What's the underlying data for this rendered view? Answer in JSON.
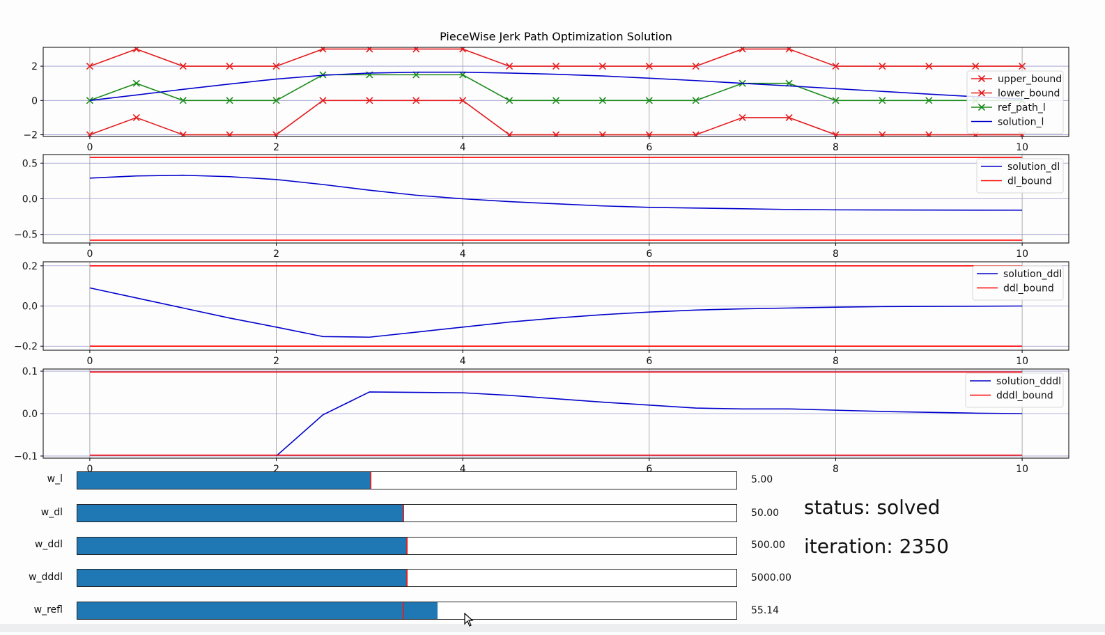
{
  "figure_title": "PieceWise Jerk Path Optimization Solution",
  "colors": {
    "bound": "#e41a1c",
    "bound_line": "#ff0000",
    "reference": "#1a8a1a",
    "solution": "#0000cc",
    "slider_fill": "#1f77b4",
    "slider_init": "#d62728"
  },
  "chart_data": [
    {
      "type": "line",
      "title": "PieceWise Jerk Path Optimization Solution",
      "xlim": [
        -0.5,
        10.5
      ],
      "ylim": [
        -2.1,
        3.1
      ],
      "xticks": [
        0,
        2,
        4,
        6,
        8,
        10
      ],
      "yticks": [
        -2,
        0,
        2
      ],
      "ytick_labels": [
        "−2",
        "0",
        "2"
      ],
      "grid": true,
      "legend": "right",
      "series": [
        {
          "name": "upper_bound",
          "color": "#e41a1c",
          "marker": "x",
          "x": [
            0,
            0.5,
            1,
            1.5,
            2,
            2.5,
            3,
            3.5,
            4,
            4.5,
            5,
            5.5,
            6,
            6.5,
            7,
            7.5,
            8,
            8.5,
            9,
            9.5,
            10
          ],
          "y": [
            2,
            3,
            2,
            2,
            2,
            3,
            3,
            3,
            3,
            2,
            2,
            2,
            2,
            2,
            3,
            3,
            2,
            2,
            2,
            2,
            2
          ]
        },
        {
          "name": "lower_bound",
          "color": "#e41a1c",
          "marker": "x",
          "x": [
            0,
            0.5,
            1,
            1.5,
            2,
            2.5,
            3,
            3.5,
            4,
            4.5,
            5,
            5.5,
            6,
            6.5,
            7,
            7.5,
            8,
            8.5,
            9,
            9.5,
            10
          ],
          "y": [
            -2,
            -1,
            -2,
            -2,
            -2,
            0,
            0,
            0,
            0,
            -2,
            -2,
            -2,
            -2,
            -2,
            -1,
            -1,
            -2,
            -2,
            -2,
            -2,
            -2
          ]
        },
        {
          "name": "ref_path_l",
          "color": "#1a8a1a",
          "marker": "x",
          "x": [
            0,
            0.5,
            1,
            1.5,
            2,
            2.5,
            3,
            3.5,
            4,
            4.5,
            5,
            5.5,
            6,
            6.5,
            7,
            7.5,
            8,
            8.5,
            9,
            9.5,
            10
          ],
          "y": [
            0,
            1,
            0,
            0,
            0,
            1.5,
            1.5,
            1.5,
            1.5,
            0,
            0,
            0,
            0,
            0,
            1,
            1,
            0,
            0,
            0,
            0,
            0
          ]
        },
        {
          "name": "solution_l",
          "color": "#0000cc",
          "marker": "",
          "x": [
            0,
            0.5,
            1,
            1.5,
            2,
            2.5,
            3,
            3.5,
            4,
            4.5,
            5,
            5.5,
            6,
            6.5,
            7,
            7.5,
            8,
            8.5,
            9,
            9.5,
            10
          ],
          "y": [
            0,
            0.32,
            0.65,
            0.96,
            1.25,
            1.47,
            1.6,
            1.65,
            1.65,
            1.6,
            1.53,
            1.43,
            1.3,
            1.16,
            1.0,
            0.85,
            0.69,
            0.53,
            0.37,
            0.22,
            0.08
          ]
        }
      ]
    },
    {
      "type": "line",
      "xlim": [
        -0.5,
        10.5
      ],
      "ylim": [
        -0.62,
        0.62
      ],
      "xticks": [
        0,
        2,
        4,
        6,
        8,
        10
      ],
      "yticks": [
        -0.5,
        0.0,
        0.5
      ],
      "ytick_labels": [
        "−0.5",
        "0.0",
        "0.5"
      ],
      "grid": true,
      "legend": "top-right",
      "series": [
        {
          "name": "solution_dl",
          "color": "#0000cc",
          "x": [
            0,
            0.5,
            1,
            1.5,
            2,
            2.5,
            3,
            3.5,
            4,
            4.5,
            5,
            5.5,
            6,
            6.5,
            7,
            7.5,
            8,
            8.5,
            9,
            9.5,
            10
          ],
          "y": [
            0.29,
            0.32,
            0.33,
            0.31,
            0.27,
            0.2,
            0.12,
            0.05,
            0.0,
            -0.04,
            -0.07,
            -0.1,
            -0.12,
            -0.13,
            -0.14,
            -0.15,
            -0.155,
            -0.157,
            -0.158,
            -0.159,
            -0.16
          ]
        },
        {
          "name": "dl_bound",
          "color": "#ff0000",
          "pair": true,
          "x": [
            0,
            10
          ],
          "y": [
            0.58,
            0.58
          ],
          "y2": [
            -0.58,
            -0.58
          ]
        }
      ]
    },
    {
      "type": "line",
      "xlim": [
        -0.5,
        10.5
      ],
      "ylim": [
        -0.22,
        0.22
      ],
      "xticks": [
        0,
        2,
        4,
        6,
        8,
        10
      ],
      "yticks": [
        -0.2,
        0.0,
        0.2
      ],
      "ytick_labels": [
        "−0.2",
        "0.0",
        "0.2"
      ],
      "grid": true,
      "legend": "top-right",
      "series": [
        {
          "name": "solution_ddl",
          "color": "#0000cc",
          "x": [
            0,
            0.5,
            1,
            1.5,
            2,
            2.5,
            3,
            3.5,
            4,
            4.5,
            5,
            5.5,
            6,
            6.5,
            7,
            7.5,
            8,
            8.5,
            9,
            9.5,
            10
          ],
          "y": [
            0.09,
            0.04,
            -0.01,
            -0.06,
            -0.105,
            -0.152,
            -0.155,
            -0.13,
            -0.105,
            -0.08,
            -0.06,
            -0.043,
            -0.03,
            -0.02,
            -0.014,
            -0.01,
            -0.006,
            -0.003,
            -0.002,
            -0.001,
            0.0
          ]
        },
        {
          "name": "ddl_bound",
          "color": "#ff0000",
          "pair": true,
          "x": [
            0,
            10
          ],
          "y": [
            0.2,
            0.2
          ],
          "y2": [
            -0.2,
            -0.2
          ]
        }
      ]
    },
    {
      "type": "line",
      "xlim": [
        -0.5,
        10.5
      ],
      "ylim": [
        -0.105,
        0.105
      ],
      "xticks": [
        0,
        2,
        4,
        6,
        8,
        10
      ],
      "yticks": [
        -0.1,
        0.0,
        0.1
      ],
      "ytick_labels": [
        "−0.1",
        "0.0",
        "0.1"
      ],
      "grid": true,
      "legend": "top-right",
      "series": [
        {
          "name": "solution_dddl",
          "color": "#0000cc",
          "x": [
            2,
            2.5,
            3,
            3.5,
            4,
            4.5,
            5,
            5.5,
            6,
            6.5,
            7,
            7.5,
            8,
            8.5,
            9,
            9.5,
            10
          ],
          "y": [
            -0.1,
            -0.003,
            0.051,
            0.05,
            0.049,
            0.043,
            0.035,
            0.027,
            0.02,
            0.013,
            0.011,
            0.011,
            0.008,
            0.005,
            0.003,
            0.001,
            0.0
          ]
        },
        {
          "name": "dddl_bound",
          "color": "#ff0000",
          "pair": true,
          "x": [
            0,
            10
          ],
          "y": [
            0.098,
            0.098
          ],
          "y2": [
            -0.098,
            -0.098
          ]
        }
      ]
    }
  ],
  "sliders": [
    {
      "label": "w_l",
      "value_text": "5.00",
      "fraction": 0.445,
      "initial_fraction": 0.445
    },
    {
      "label": "w_dl",
      "value_text": "50.00",
      "fraction": 0.495,
      "initial_fraction": 0.495
    },
    {
      "label": "w_ddl",
      "value_text": "500.00",
      "fraction": 0.5,
      "initial_fraction": 0.5
    },
    {
      "label": "w_dddl",
      "value_text": "5000.00",
      "fraction": 0.5,
      "initial_fraction": 0.5
    },
    {
      "label": "w_refl",
      "value_text": "55.14",
      "fraction": 0.546,
      "initial_fraction": 0.495
    }
  ],
  "status": {
    "status_line": "status: solved",
    "iteration_line": "iteration: 2350"
  }
}
